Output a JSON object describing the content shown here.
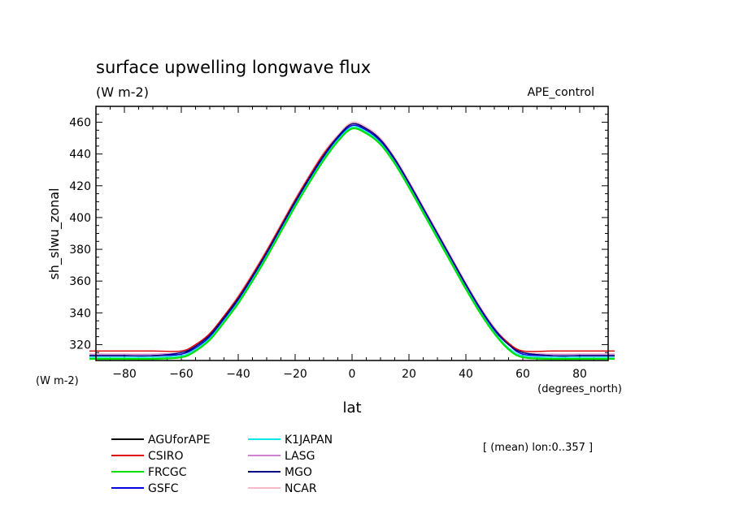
{
  "chart_data": {
    "type": "line",
    "title": "surface upwelling longwave flux",
    "units": "(W m-2)",
    "experiment": "APE_control",
    "ylabel": "sh_slwu_zonal",
    "y_units_label": "(W m-2)",
    "xlabel": "lat",
    "x_units_label": "(degrees_north)",
    "averaging_note": "[ (mean) lon:0..357 ]",
    "xlim": [
      -90,
      90
    ],
    "ylim": [
      310,
      470
    ],
    "x_ticks": [
      -80,
      -60,
      -40,
      -20,
      0,
      20,
      40,
      60,
      80
    ],
    "x_tick_labels": [
      "−80",
      "−60",
      "−40",
      "−20",
      "0",
      "20",
      "40",
      "60",
      "80"
    ],
    "y_ticks": [
      320,
      340,
      360,
      380,
      400,
      420,
      440,
      460
    ],
    "y_tick_labels": [
      "320",
      "340",
      "360",
      "380",
      "400",
      "420",
      "440",
      "460"
    ],
    "x": [
      -90,
      -80,
      -70,
      -60,
      -55,
      -50,
      -45,
      -40,
      -35,
      -30,
      -25,
      -20,
      -15,
      -10,
      -5,
      0,
      5,
      10,
      15,
      20,
      25,
      30,
      35,
      40,
      45,
      50,
      55,
      60,
      70,
      80,
      90
    ],
    "series": [
      {
        "name": "AGUforAPE",
        "color": "#000000",
        "values": [
          313,
          313,
          313,
          314,
          319,
          326,
          337,
          349,
          363,
          378,
          394,
          410,
          425,
          439,
          450,
          458,
          455,
          448,
          436,
          421,
          405,
          389,
          373,
          357,
          342,
          329,
          320,
          315,
          313,
          313,
          313
        ]
      },
      {
        "name": "CSIRO",
        "color": "#e00000",
        "values": [
          316,
          316,
          316,
          316,
          320,
          327,
          338,
          350,
          364,
          379,
          395,
          411,
          426,
          440,
          451,
          459,
          456,
          449,
          437,
          422,
          406,
          390,
          374,
          358,
          343,
          330,
          321,
          316,
          316,
          316,
          316
        ]
      },
      {
        "name": "FRCGC",
        "color": "#00e000",
        "values": [
          311,
          311,
          311,
          312,
          316,
          323,
          334,
          346,
          360,
          375,
          391,
          407,
          422,
          436,
          448,
          456,
          453,
          446,
          434,
          419,
          403,
          387,
          371,
          355,
          340,
          327,
          317,
          312,
          311,
          311,
          311
        ]
      },
      {
        "name": "GSFC",
        "color": "#0000e0",
        "values": [
          313,
          313,
          313,
          314,
          318,
          325,
          336,
          348,
          362,
          377,
          393,
          409,
          424,
          438,
          450,
          458,
          455,
          448,
          436,
          421,
          405,
          389,
          373,
          357,
          342,
          329,
          320,
          314,
          313,
          313,
          313
        ]
      },
      {
        "name": "K1JAPAN",
        "color": "#00e8e8",
        "values": [
          312,
          312,
          312,
          313,
          317,
          324,
          335,
          347,
          361,
          376,
          392,
          408,
          423,
          437,
          449,
          457,
          454,
          447,
          435,
          420,
          404,
          388,
          372,
          356,
          341,
          328,
          318,
          313,
          312,
          312,
          312
        ]
      },
      {
        "name": "LASG",
        "color": "#d080d0",
        "values": [
          314,
          314,
          314,
          315,
          319,
          326,
          337,
          350,
          364,
          379,
          395,
          411,
          426,
          440,
          451,
          459,
          456,
          449,
          437,
          422,
          406,
          390,
          374,
          358,
          343,
          330,
          321,
          315,
          314,
          314,
          314
        ]
      },
      {
        "name": "MGO",
        "color": "#000080",
        "values": [
          313,
          313,
          313,
          315,
          319,
          326,
          337,
          349,
          363,
          378,
          394,
          410,
          425,
          439,
          451,
          459,
          456,
          449,
          437,
          422,
          406,
          390,
          374,
          358,
          343,
          330,
          320,
          315,
          313,
          313,
          313
        ]
      },
      {
        "name": "NCAR",
        "color": "#f8b8c8",
        "values": [
          316,
          316,
          316,
          316,
          320,
          327,
          338,
          351,
          365,
          380,
          396,
          412,
          427,
          441,
          452,
          460,
          457,
          450,
          438,
          423,
          407,
          391,
          375,
          359,
          344,
          331,
          321,
          316,
          316,
          316,
          316
        ]
      }
    ]
  }
}
